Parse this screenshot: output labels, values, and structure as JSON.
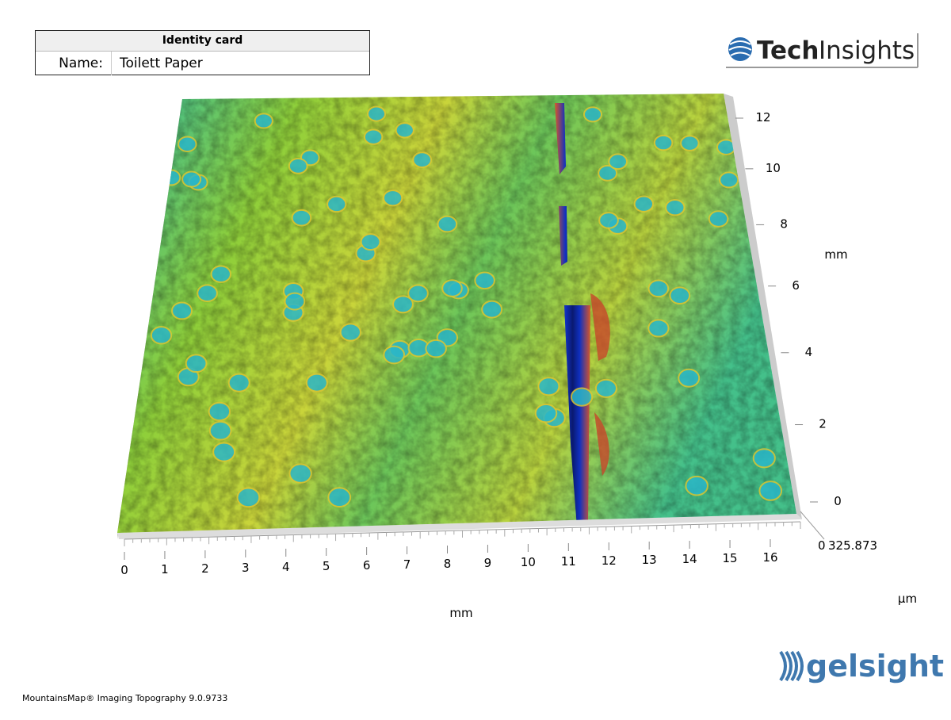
{
  "identity_card": {
    "title": "Identity card",
    "name_label": "Name:",
    "name_value": "Toilett Paper"
  },
  "logos": {
    "tech": "Tech",
    "insights": "Insights",
    "gelsight": "gelsight"
  },
  "axes": {
    "x": {
      "ticks": [
        0,
        1,
        2,
        3,
        4,
        5,
        6,
        7,
        8,
        9,
        10,
        11,
        12,
        13,
        14,
        15,
        16
      ],
      "unit": "mm"
    },
    "y": {
      "ticks": [
        0,
        2,
        4,
        6,
        8,
        10,
        12
      ],
      "unit": "mm"
    },
    "z": {
      "ticks": [
        0,
        325.873
      ],
      "unit": "µm"
    }
  },
  "footer": "MountainsMap® Imaging Topography 9.0.9733"
}
